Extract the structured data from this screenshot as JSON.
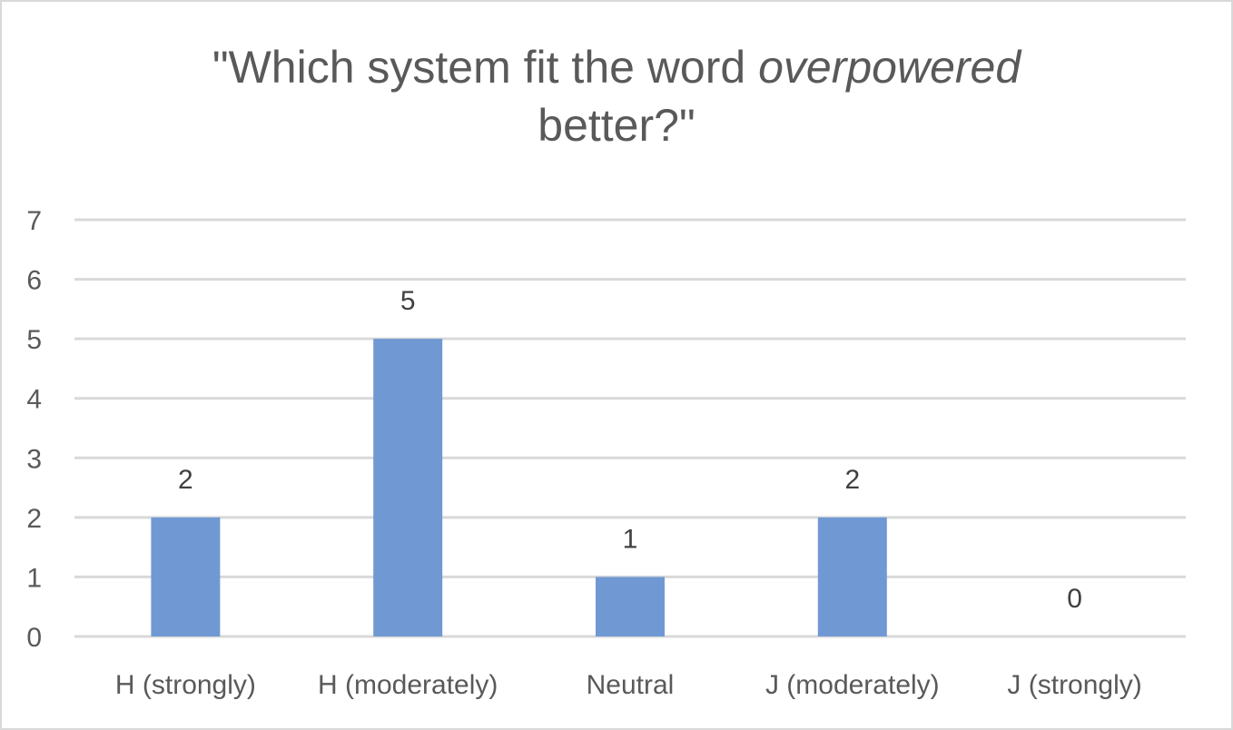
{
  "chart_data": {
    "type": "bar",
    "title_parts": {
      "before": "\"Which system fit the word ",
      "emphasis": "overpowered",
      "after": " better?\""
    },
    "categories": [
      "H (strongly)",
      "H (moderately)",
      "Neutral",
      "J (moderately)",
      "J (strongly)"
    ],
    "values": [
      2,
      5,
      1,
      2,
      0
    ],
    "data_labels": [
      "2",
      "5",
      "1",
      "2",
      "0"
    ],
    "xlabel": "",
    "ylabel": "",
    "ylim": [
      0,
      7
    ],
    "yticks": [
      0,
      1,
      2,
      3,
      4,
      5,
      6,
      7
    ],
    "grid": true,
    "legend": "none",
    "bar_color": "#7099d3",
    "grid_color": "#d9d9d9"
  }
}
